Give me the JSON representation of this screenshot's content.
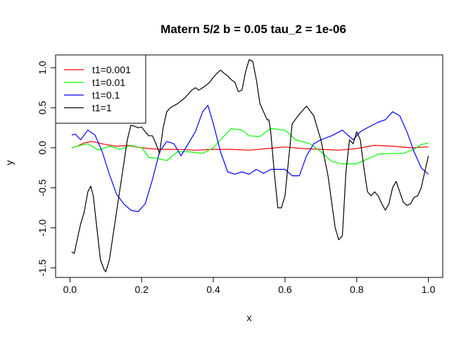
{
  "chart_data": {
    "type": "line",
    "title": "Matern 5/2  b = 0.05  tau_2 = 1e-06",
    "xlabel": "x",
    "ylabel": "y",
    "xlim": [
      -0.04,
      1.04
    ],
    "ylim": [
      -1.62,
      1.16
    ],
    "x_ticks": [
      0.0,
      0.2,
      0.4,
      0.6,
      0.8,
      1.0
    ],
    "x_tick_labels": [
      "0.0",
      "0.2",
      "0.4",
      "0.6",
      "0.8",
      "1.0"
    ],
    "y_ticks": [
      -1.5,
      -1.0,
      -0.5,
      0.0,
      0.5,
      1.0
    ],
    "y_tick_labels": [
      "-1.5",
      "-1.0",
      "-0.5",
      "0.0",
      "0.5",
      "1.0"
    ],
    "grid": false,
    "legend_position": "top-left",
    "series": [
      {
        "name": "t1=0.001",
        "color": "#ff0000",
        "x": [
          0.005,
          0.02,
          0.04,
          0.06,
          0.08,
          0.1,
          0.13,
          0.16,
          0.2,
          0.25,
          0.3,
          0.35,
          0.4,
          0.45,
          0.5,
          0.55,
          0.6,
          0.65,
          0.7,
          0.75,
          0.8,
          0.85,
          0.9,
          0.95,
          1.0
        ],
        "y": [
          0.0,
          0.02,
          0.06,
          0.08,
          0.06,
          0.04,
          0.02,
          0.03,
          0.0,
          -0.02,
          -0.02,
          -0.03,
          -0.02,
          -0.02,
          -0.03,
          -0.01,
          0.01,
          -0.01,
          -0.02,
          -0.03,
          -0.01,
          0.03,
          0.02,
          0.0,
          0.01
        ]
      },
      {
        "name": "t1=0.01",
        "color": "#00ff00",
        "x": [
          0.005,
          0.02,
          0.05,
          0.08,
          0.11,
          0.14,
          0.17,
          0.2,
          0.22,
          0.24,
          0.27,
          0.3,
          0.33,
          0.37,
          0.4,
          0.42,
          0.45,
          0.48,
          0.5,
          0.53,
          0.56,
          0.6,
          0.63,
          0.67,
          0.7,
          0.73,
          0.76,
          0.8,
          0.83,
          0.86,
          0.9,
          0.93,
          0.96,
          0.98,
          1.0
        ],
        "y": [
          0.0,
          0.02,
          0.05,
          -0.03,
          0.02,
          -0.02,
          0.03,
          0.0,
          -0.12,
          -0.13,
          -0.16,
          -0.05,
          -0.05,
          -0.07,
          0.0,
          0.1,
          0.24,
          0.22,
          0.15,
          0.14,
          0.24,
          0.22,
          0.1,
          0.05,
          -0.05,
          -0.17,
          -0.2,
          -0.2,
          -0.14,
          -0.08,
          -0.07,
          -0.07,
          -0.02,
          0.04,
          0.06
        ]
      },
      {
        "name": "t1=0.1",
        "color": "#0000ff",
        "x": [
          0.005,
          0.015,
          0.03,
          0.05,
          0.07,
          0.09,
          0.11,
          0.13,
          0.15,
          0.17,
          0.19,
          0.21,
          0.23,
          0.25,
          0.27,
          0.29,
          0.31,
          0.33,
          0.35,
          0.37,
          0.385,
          0.4,
          0.42,
          0.44,
          0.46,
          0.48,
          0.5,
          0.52,
          0.54,
          0.56,
          0.58,
          0.6,
          0.62,
          0.64,
          0.66,
          0.68,
          0.7,
          0.73,
          0.76,
          0.79,
          0.81,
          0.83,
          0.86,
          0.88,
          0.9,
          0.92,
          0.94,
          0.96,
          0.98,
          1.0
        ],
        "y": [
          0.16,
          0.17,
          0.1,
          0.22,
          0.16,
          -0.05,
          -0.33,
          -0.58,
          -0.7,
          -0.78,
          -0.8,
          -0.7,
          -0.4,
          -0.05,
          0.08,
          0.05,
          -0.1,
          0.05,
          0.2,
          0.45,
          0.53,
          0.3,
          -0.05,
          -0.3,
          -0.33,
          -0.3,
          -0.33,
          -0.27,
          -0.32,
          -0.27,
          -0.27,
          -0.27,
          -0.35,
          -0.35,
          -0.1,
          0.05,
          0.1,
          0.15,
          0.22,
          0.1,
          0.2,
          0.25,
          0.32,
          0.35,
          0.45,
          0.4,
          0.2,
          -0.05,
          -0.25,
          -0.33
        ]
      },
      {
        "name": "t1=1",
        "color": "#000000",
        "x": [
          0.005,
          0.012,
          0.02,
          0.03,
          0.04,
          0.05,
          0.058,
          0.065,
          0.075,
          0.085,
          0.095,
          0.1,
          0.11,
          0.12,
          0.13,
          0.14,
          0.15,
          0.16,
          0.17,
          0.18,
          0.19,
          0.2,
          0.21,
          0.22,
          0.23,
          0.24,
          0.25,
          0.26,
          0.27,
          0.28,
          0.3,
          0.32,
          0.34,
          0.35,
          0.36,
          0.37,
          0.38,
          0.39,
          0.4,
          0.41,
          0.42,
          0.43,
          0.44,
          0.45,
          0.46,
          0.47,
          0.48,
          0.49,
          0.5,
          0.51,
          0.52,
          0.53,
          0.54,
          0.55,
          0.555,
          0.56,
          0.57,
          0.58,
          0.59,
          0.6,
          0.62,
          0.64,
          0.66,
          0.68,
          0.7,
          0.72,
          0.74,
          0.75,
          0.76,
          0.765,
          0.77,
          0.78,
          0.79,
          0.8,
          0.81,
          0.82,
          0.83,
          0.84,
          0.85,
          0.86,
          0.87,
          0.88,
          0.89,
          0.9,
          0.91,
          0.92,
          0.93,
          0.94,
          0.95,
          0.96,
          0.97,
          0.98,
          0.99,
          1.0
        ],
        "y": [
          -1.3,
          -1.32,
          -1.15,
          -0.95,
          -0.8,
          -0.55,
          -0.48,
          -0.6,
          -1.0,
          -1.4,
          -1.52,
          -1.55,
          -1.4,
          -1.1,
          -0.8,
          -0.5,
          -0.2,
          0.1,
          0.28,
          0.27,
          0.25,
          0.26,
          0.2,
          0.15,
          0.15,
          0.05,
          -0.07,
          0.25,
          0.45,
          0.5,
          0.55,
          0.62,
          0.72,
          0.75,
          0.72,
          0.75,
          0.78,
          0.82,
          0.88,
          0.93,
          0.97,
          0.93,
          0.9,
          0.85,
          0.82,
          0.7,
          0.72,
          0.95,
          1.1,
          1.08,
          0.85,
          0.55,
          0.45,
          0.35,
          0.35,
          0.2,
          -0.3,
          -0.75,
          -0.75,
          -0.6,
          0.3,
          0.42,
          0.52,
          0.4,
          0.1,
          -0.35,
          -1.0,
          -1.15,
          -1.1,
          -0.7,
          -0.3,
          0.1,
          0.05,
          0.2,
          0.1,
          -0.25,
          -0.55,
          -0.6,
          -0.55,
          -0.6,
          -0.7,
          -0.78,
          -0.7,
          -0.5,
          -0.42,
          -0.55,
          -0.68,
          -0.72,
          -0.7,
          -0.62,
          -0.6,
          -0.5,
          -0.3,
          -0.1
        ]
      }
    ]
  }
}
